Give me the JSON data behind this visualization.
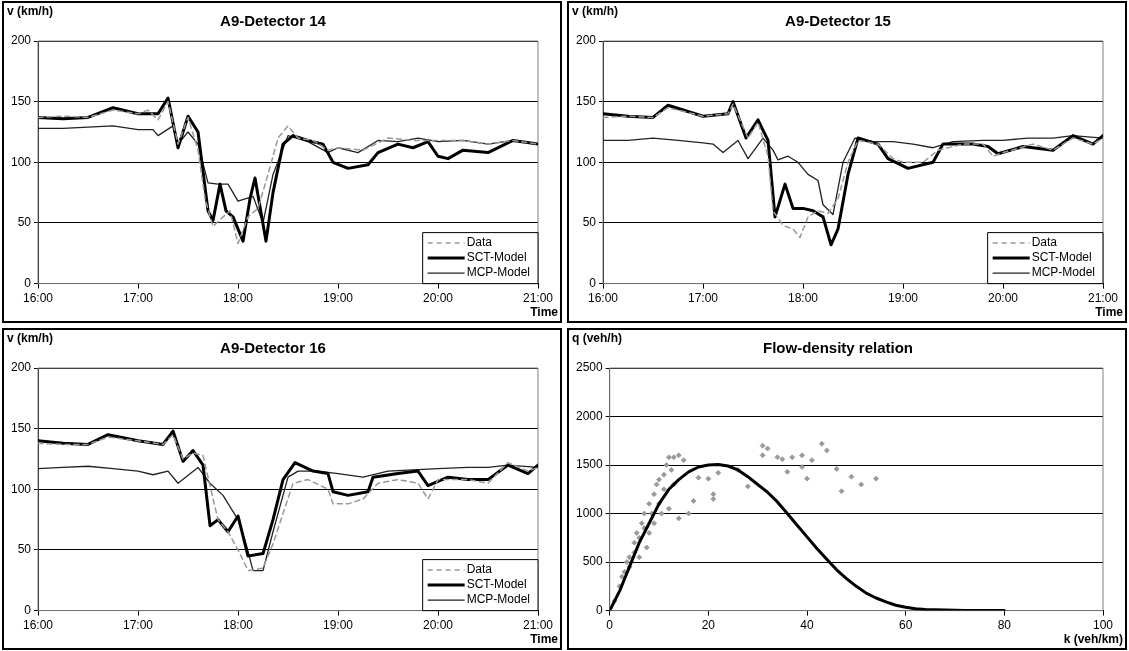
{
  "chart_data": [
    {
      "type": "line",
      "title": "A9-Detector 14",
      "xlabel": "Time",
      "ylabel": "v (km/h)",
      "xlim": [
        16,
        21
      ],
      "xticks": [
        {
          "value": 16,
          "label": "16:00"
        },
        {
          "value": 17,
          "label": "17:00"
        },
        {
          "value": 18,
          "label": "18:00"
        },
        {
          "value": 19,
          "label": "19:00"
        },
        {
          "value": 20,
          "label": "20:00"
        },
        {
          "value": 21,
          "label": "21:00"
        }
      ],
      "ylim": [
        0,
        200
      ],
      "yticks": [
        0,
        50,
        100,
        150,
        200
      ],
      "grid": "y",
      "legend": "bottom right",
      "marker": "none",
      "series": [
        {
          "name": "Data",
          "color": "#999999",
          "line_style": "dashed",
          "x": [
            16,
            16.25,
            16.5,
            16.75,
            17,
            17.1,
            17.2,
            17.3,
            17.4,
            17.5,
            17.6,
            17.67,
            17.75,
            17.85,
            17.92,
            18,
            18.1,
            18.2,
            18.3,
            18.4,
            18.5,
            18.6,
            18.75,
            18.9,
            19,
            19.25,
            19.5,
            19.75,
            20,
            20.25,
            20.5,
            20.75,
            21
          ],
          "values": [
            137,
            138,
            137,
            143,
            140,
            143,
            135,
            150,
            115,
            137,
            110,
            70,
            47,
            55,
            60,
            33,
            55,
            62,
            90,
            120,
            130,
            120,
            118,
            110,
            112,
            110,
            120,
            118,
            118,
            118,
            115,
            118,
            115
          ]
        },
        {
          "name": "SCT-Model",
          "color": "#000000",
          "line_style": "solid",
          "x": [
            16,
            16.25,
            16.5,
            16.75,
            17,
            17.2,
            17.3,
            17.4,
            17.5,
            17.6,
            17.7,
            17.75,
            17.82,
            17.88,
            17.95,
            18.05,
            18.12,
            18.17,
            18.28,
            18.35,
            18.45,
            18.55,
            18.7,
            18.85,
            18.95,
            19.1,
            19.3,
            19.4,
            19.6,
            19.75,
            19.9,
            20,
            20.1,
            20.25,
            20.5,
            20.75,
            21
          ],
          "values": [
            137,
            136,
            137,
            145,
            140,
            140,
            153,
            112,
            138,
            125,
            60,
            52,
            82,
            60,
            55,
            35,
            70,
            87,
            35,
            75,
            115,
            122,
            118,
            115,
            100,
            95,
            98,
            108,
            115,
            112,
            117,
            105,
            103,
            110,
            108,
            118,
            115
          ]
        },
        {
          "name": "MCP-Model",
          "color": "#222222",
          "line_style": "solid",
          "x": [
            16,
            16.25,
            16.5,
            16.75,
            17,
            17.15,
            17.2,
            17.35,
            17.4,
            17.5,
            17.6,
            17.7,
            17.8,
            17.9,
            18,
            18.15,
            18.25,
            18.35,
            18.5,
            18.7,
            18.9,
            19,
            19.2,
            19.4,
            19.6,
            19.8,
            20,
            20.25,
            20.5,
            20.75,
            21
          ],
          "values": [
            128,
            128,
            129,
            130,
            127,
            127,
            122,
            130,
            115,
            125,
            115,
            83,
            82,
            82,
            68,
            72,
            50,
            90,
            122,
            117,
            108,
            112,
            108,
            118,
            117,
            120,
            117,
            118,
            115,
            118,
            115
          ]
        }
      ]
    },
    {
      "type": "line",
      "title": "A9-Detector 15",
      "xlabel": "Time",
      "ylabel": "v (km/h)",
      "xlim": [
        16,
        21
      ],
      "xticks": [
        {
          "value": 16,
          "label": "16:00"
        },
        {
          "value": 17,
          "label": "17:00"
        },
        {
          "value": 18,
          "label": "18:00"
        },
        {
          "value": 19,
          "label": "19:00"
        },
        {
          "value": 20,
          "label": "20:00"
        },
        {
          "value": 21,
          "label": "21:00"
        }
      ],
      "ylim": [
        0,
        200
      ],
      "yticks": [
        0,
        50,
        100,
        150,
        200
      ],
      "grid": "y",
      "legend": "bottom right",
      "marker": "none",
      "series": [
        {
          "name": "Data",
          "color": "#999999",
          "line_style": "dashed",
          "x": [
            16,
            16.25,
            16.5,
            16.65,
            17,
            17.25,
            17.3,
            17.45,
            17.55,
            17.65,
            17.7,
            17.8,
            17.9,
            17.97,
            18.05,
            18.15,
            18.25,
            18.35,
            18.45,
            18.55,
            18.75,
            18.9,
            19,
            19.2,
            19.35,
            19.6,
            19.8,
            19.9,
            20,
            20.3,
            20.5,
            20.7,
            20.9,
            21
          ],
          "values": [
            137,
            138,
            137,
            145,
            138,
            140,
            148,
            120,
            133,
            105,
            60,
            48,
            45,
            38,
            55,
            60,
            58,
            70,
            100,
            118,
            115,
            103,
            100,
            100,
            110,
            115,
            115,
            105,
            108,
            115,
            110,
            120,
            115,
            120
          ]
        },
        {
          "name": "SCT-Model",
          "color": "#000000",
          "line_style": "solid",
          "x": [
            16,
            16.25,
            16.5,
            16.65,
            17,
            17.25,
            17.3,
            17.43,
            17.55,
            17.65,
            17.72,
            17.82,
            17.9,
            18,
            18.1,
            18.2,
            18.28,
            18.35,
            18.45,
            18.55,
            18.75,
            18.85,
            19.05,
            19.3,
            19.4,
            19.7,
            19.85,
            19.95,
            20.2,
            20.5,
            20.7,
            20.9,
            21
          ],
          "values": [
            140,
            138,
            137,
            147,
            138,
            140,
            150,
            120,
            135,
            118,
            55,
            82,
            62,
            62,
            60,
            55,
            32,
            45,
            90,
            120,
            115,
            103,
            95,
            100,
            115,
            115,
            113,
            107,
            113,
            110,
            122,
            115,
            122
          ]
        },
        {
          "name": "MCP-Model",
          "color": "#222222",
          "line_style": "solid",
          "x": [
            16,
            16.25,
            16.5,
            16.75,
            17,
            17.1,
            17.2,
            17.35,
            17.45,
            17.6,
            17.7,
            17.75,
            17.85,
            17.95,
            18.05,
            18.15,
            18.2,
            18.3,
            18.4,
            18.52,
            18.7,
            18.9,
            19.1,
            19.3,
            19.5,
            19.8,
            20,
            20.25,
            20.5,
            20.7,
            21
          ],
          "values": [
            118,
            118,
            120,
            118,
            116,
            115,
            108,
            118,
            103,
            120,
            110,
            102,
            105,
            100,
            90,
            85,
            65,
            57,
            100,
            120,
            117,
            117,
            115,
            112,
            117,
            118,
            118,
            120,
            120,
            122,
            120
          ]
        }
      ]
    },
    {
      "type": "line",
      "title": "A9-Detector 16",
      "xlabel": "Time",
      "ylabel": "v (km/h)",
      "xlim": [
        16,
        21
      ],
      "xticks": [
        {
          "value": 16,
          "label": "16:00"
        },
        {
          "value": 17,
          "label": "17:00"
        },
        {
          "value": 18,
          "label": "18:00"
        },
        {
          "value": 19,
          "label": "19:00"
        },
        {
          "value": 20,
          "label": "20:00"
        },
        {
          "value": 21,
          "label": "21:00"
        }
      ],
      "ylim": [
        0,
        200
      ],
      "yticks": [
        0,
        50,
        100,
        150,
        200
      ],
      "grid": "y",
      "legend": "bottom right",
      "marker": "none",
      "series": [
        {
          "name": "Data",
          "color": "#999999",
          "line_style": "dashed",
          "x": [
            16,
            16.25,
            16.5,
            16.7,
            17,
            17.25,
            17.35,
            17.45,
            17.55,
            17.65,
            17.7,
            17.8,
            17.9,
            18,
            18.1,
            18.25,
            18.35,
            18.45,
            18.55,
            18.7,
            18.9,
            18.95,
            19.1,
            19.25,
            19.4,
            19.6,
            19.8,
            19.9,
            20,
            20.3,
            20.5,
            20.7,
            20.9,
            21
          ],
          "values": [
            138,
            137,
            137,
            143,
            140,
            137,
            145,
            125,
            130,
            128,
            110,
            75,
            65,
            50,
            33,
            35,
            55,
            80,
            105,
            108,
            100,
            88,
            88,
            92,
            105,
            108,
            105,
            92,
            108,
            108,
            105,
            122,
            115,
            118
          ]
        },
        {
          "name": "SCT-Model",
          "color": "#000000",
          "line_style": "solid",
          "x": [
            16,
            16.25,
            16.5,
            16.7,
            17,
            17.25,
            17.35,
            17.45,
            17.55,
            17.65,
            17.72,
            17.8,
            17.9,
            18,
            18.1,
            18.25,
            18.35,
            18.45,
            18.57,
            18.75,
            18.9,
            18.95,
            19.1,
            19.3,
            19.35,
            19.6,
            19.8,
            19.9,
            20.1,
            20.3,
            20.5,
            20.7,
            20.9,
            21
          ],
          "values": [
            140,
            138,
            137,
            145,
            140,
            137,
            148,
            123,
            132,
            120,
            70,
            75,
            65,
            78,
            45,
            47,
            75,
            108,
            122,
            115,
            113,
            98,
            95,
            98,
            110,
            113,
            115,
            103,
            110,
            108,
            108,
            120,
            113,
            120
          ]
        },
        {
          "name": "MCP-Model",
          "color": "#222222",
          "line_style": "solid",
          "x": [
            16,
            16.25,
            16.5,
            16.75,
            17,
            17.15,
            17.3,
            17.4,
            17.6,
            17.72,
            17.85,
            18,
            18.08,
            18.15,
            18.25,
            18.35,
            18.5,
            18.6,
            18.8,
            19,
            19.25,
            19.5,
            19.75,
            20,
            20.3,
            20.5,
            20.7,
            21
          ],
          "values": [
            117,
            118,
            119,
            117,
            115,
            112,
            115,
            105,
            118,
            105,
            95,
            75,
            55,
            33,
            33,
            65,
            110,
            115,
            115,
            113,
            110,
            115,
            116,
            117,
            118,
            118,
            120,
            118
          ]
        }
      ]
    },
    {
      "type": "scatter",
      "title": "Flow-density relation",
      "xlabel": "k (veh/km)",
      "ylabel": "q (veh/h)",
      "xlim": [
        0,
        100
      ],
      "xticks": [
        0,
        20,
        40,
        60,
        80,
        100
      ],
      "ylim": [
        0,
        2500
      ],
      "yticks": [
        0,
        500,
        1000,
        1500,
        2000,
        2500
      ],
      "grid": "y",
      "series": [
        {
          "color": "#999999",
          "marker": "diamond",
          "x": [
            1,
            2,
            2.5,
            3,
            3.5,
            4,
            4,
            5,
            5,
            5.5,
            6,
            6,
            6.5,
            7,
            7,
            7.5,
            8,
            8,
            8.5,
            9,
            9,
            9.5,
            10,
            10,
            10.5,
            11,
            11,
            11.5,
            12,
            12,
            12.5,
            13,
            13,
            14,
            14,
            15,
            16,
            17,
            18,
            20,
            21,
            21,
            22,
            26,
            28,
            31,
            31,
            32,
            34,
            35,
            36,
            37,
            39,
            39,
            40,
            41,
            43,
            44,
            46,
            47,
            49,
            51,
            54
          ],
          "values": [
            100,
            250,
            350,
            400,
            500,
            550,
            450,
            600,
            700,
            800,
            750,
            550,
            900,
            850,
            1000,
            650,
            1100,
            800,
            1000,
            1200,
            900,
            1300,
            1100,
            1350,
            1000,
            1400,
            1250,
            1500,
            1580,
            1050,
            1450,
            1580,
            1300,
            1600,
            950,
            1550,
            1000,
            1130,
            1370,
            1360,
            1150,
            1200,
            1420,
            1450,
            1280,
            1700,
            1600,
            1670,
            1580,
            1560,
            1430,
            1580,
            1600,
            1480,
            1360,
            1550,
            1720,
            1650,
            1460,
            1230,
            1380,
            1300,
            1360
          ]
        },
        {
          "type": "line",
          "color": "#000000",
          "marker": "none",
          "line_style": "solid",
          "x": [
            0,
            2,
            4,
            6,
            8,
            10,
            12,
            14,
            16,
            18,
            20,
            22,
            24,
            26,
            28,
            30,
            32,
            34,
            36,
            38,
            40,
            42,
            44,
            46,
            48,
            50,
            52,
            54,
            56,
            58,
            60,
            62,
            64,
            68,
            72,
            80
          ],
          "values": [
            0,
            200,
            450,
            700,
            900,
            1100,
            1250,
            1350,
            1430,
            1480,
            1500,
            1505,
            1490,
            1450,
            1380,
            1300,
            1220,
            1120,
            1000,
            880,
            760,
            640,
            530,
            420,
            330,
            250,
            180,
            130,
            90,
            55,
            35,
            20,
            12,
            5,
            2,
            0
          ]
        }
      ]
    }
  ]
}
